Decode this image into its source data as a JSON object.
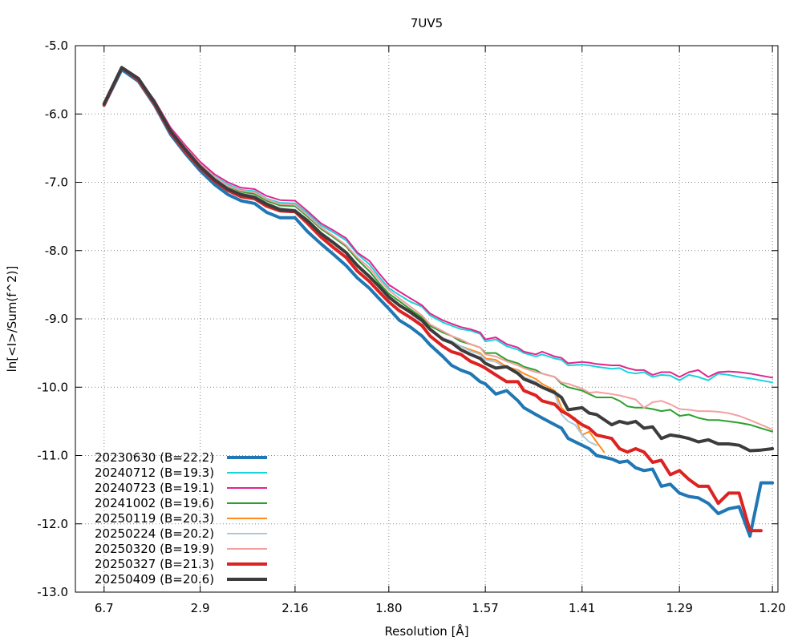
{
  "chart_data": {
    "type": "line",
    "title": "7UV5",
    "xlabel": "Resolution [Å]",
    "ylabel": "ln[<I>/Sum(f^2)]",
    "x_ticks": [
      "6.7",
      "2.9",
      "2.16",
      "1.80",
      "1.57",
      "1.41",
      "1.29",
      "1.20"
    ],
    "y_ticks": [
      "-5.0",
      "-6.0",
      "-7.0",
      "-8.0",
      "-9.0",
      "-10.0",
      "-11.0",
      "-12.0",
      "-13.0"
    ],
    "xlim": [
      -0.0066,
      0.7
    ],
    "ylim": [
      -13.0,
      -5.0
    ],
    "x_scale": "1/d^2",
    "grid": true,
    "legend_position": "bottom-left",
    "series": [
      {
        "name": "20230630 (B=22.2)",
        "color": "#1f77b4",
        "width": 4,
        "x": [
          6.7,
          5.0,
          4.2,
          3.7,
          3.35,
          3.1,
          2.9,
          2.74,
          2.61,
          2.5,
          2.4,
          2.32,
          2.24,
          2.16,
          2.1,
          2.04,
          1.99,
          1.94,
          1.9,
          1.86,
          1.83,
          1.8,
          1.77,
          1.74,
          1.71,
          1.69,
          1.66,
          1.64,
          1.62,
          1.6,
          1.58,
          1.57,
          1.55,
          1.53,
          1.51,
          1.5,
          1.48,
          1.47,
          1.45,
          1.44,
          1.43,
          1.41,
          1.4,
          1.39,
          1.37,
          1.36,
          1.35,
          1.34,
          1.33,
          1.32,
          1.31,
          1.3,
          1.29,
          1.28,
          1.27,
          1.26,
          1.25,
          1.24,
          1.23,
          1.22,
          1.21,
          1.2
        ],
        "y": [
          -5.87,
          -5.35,
          -5.52,
          -5.87,
          -6.3,
          -6.58,
          -6.83,
          -7.03,
          -7.18,
          -7.27,
          -7.31,
          -7.44,
          -7.52,
          -7.52,
          -7.72,
          -7.9,
          -8.05,
          -8.22,
          -8.4,
          -8.55,
          -8.7,
          -8.85,
          -9.02,
          -9.12,
          -9.25,
          -9.38,
          -9.55,
          -9.68,
          -9.75,
          -9.8,
          -9.92,
          -9.95,
          -10.1,
          -10.05,
          -10.2,
          -10.3,
          -10.4,
          -10.45,
          -10.55,
          -10.6,
          -10.75,
          -10.85,
          -10.9,
          -11.0,
          -11.05,
          -11.1,
          -11.08,
          -11.18,
          -11.22,
          -11.2,
          -11.45,
          -11.42,
          -11.55,
          -11.6,
          -11.62,
          -11.7,
          -11.85,
          -11.78,
          -11.75,
          -12.18,
          -11.4,
          -11.4
        ]
      },
      {
        "name": "20240712 (B=19.3)",
        "color": "#17d3dc",
        "width": 2,
        "x": [
          6.7,
          5.0,
          4.2,
          3.7,
          3.35,
          3.1,
          2.9,
          2.74,
          2.61,
          2.5,
          2.4,
          2.32,
          2.24,
          2.16,
          2.1,
          2.04,
          1.99,
          1.94,
          1.9,
          1.86,
          1.83,
          1.8,
          1.77,
          1.74,
          1.71,
          1.69,
          1.66,
          1.64,
          1.62,
          1.6,
          1.58,
          1.57,
          1.55,
          1.53,
          1.51,
          1.5,
          1.48,
          1.47,
          1.45,
          1.44,
          1.43,
          1.41,
          1.4,
          1.39,
          1.37,
          1.36,
          1.35,
          1.34,
          1.33,
          1.32,
          1.31,
          1.3,
          1.29,
          1.28,
          1.27,
          1.26,
          1.25,
          1.24,
          1.23,
          1.22,
          1.21,
          1.2
        ],
        "y": [
          -5.87,
          -5.33,
          -5.48,
          -5.8,
          -6.22,
          -6.48,
          -6.72,
          -6.91,
          -7.03,
          -7.11,
          -7.13,
          -7.24,
          -7.3,
          -7.31,
          -7.45,
          -7.63,
          -7.73,
          -7.85,
          -8.05,
          -8.2,
          -8.38,
          -8.55,
          -8.65,
          -8.75,
          -8.82,
          -8.95,
          -9.05,
          -9.1,
          -9.15,
          -9.17,
          -9.22,
          -9.33,
          -9.3,
          -9.4,
          -9.45,
          -9.5,
          -9.55,
          -9.52,
          -9.58,
          -9.6,
          -9.68,
          -9.67,
          -9.68,
          -9.7,
          -9.73,
          -9.72,
          -9.78,
          -9.8,
          -9.78,
          -9.85,
          -9.82,
          -9.83,
          -9.9,
          -9.82,
          -9.85,
          -9.9,
          -9.8,
          -9.82,
          -9.85,
          -9.87,
          -9.9,
          -9.93
        ]
      },
      {
        "name": "20240723 (B=19.1)",
        "color": "#e0268f",
        "width": 2,
        "x": [
          6.7,
          5.0,
          4.2,
          3.7,
          3.35,
          3.1,
          2.9,
          2.74,
          2.61,
          2.5,
          2.4,
          2.32,
          2.24,
          2.16,
          2.1,
          2.04,
          1.99,
          1.94,
          1.9,
          1.86,
          1.83,
          1.8,
          1.77,
          1.74,
          1.71,
          1.69,
          1.66,
          1.64,
          1.62,
          1.6,
          1.58,
          1.57,
          1.55,
          1.53,
          1.51,
          1.5,
          1.48,
          1.47,
          1.45,
          1.44,
          1.43,
          1.41,
          1.4,
          1.39,
          1.37,
          1.36,
          1.35,
          1.34,
          1.33,
          1.32,
          1.31,
          1.3,
          1.29,
          1.28,
          1.27,
          1.26,
          1.25,
          1.24,
          1.23,
          1.22,
          1.21,
          1.2
        ],
        "y": [
          -5.87,
          -5.33,
          -5.48,
          -5.8,
          -6.2,
          -6.46,
          -6.7,
          -6.88,
          -7.0,
          -7.08,
          -7.1,
          -7.2,
          -7.26,
          -7.27,
          -7.42,
          -7.6,
          -7.7,
          -7.82,
          -8.03,
          -8.15,
          -8.33,
          -8.5,
          -8.6,
          -8.7,
          -8.8,
          -8.92,
          -9.02,
          -9.07,
          -9.12,
          -9.15,
          -9.2,
          -9.3,
          -9.27,
          -9.37,
          -9.42,
          -9.48,
          -9.52,
          -9.48,
          -9.55,
          -9.57,
          -9.65,
          -9.63,
          -9.64,
          -9.66,
          -9.68,
          -9.68,
          -9.72,
          -9.75,
          -9.75,
          -9.82,
          -9.78,
          -9.78,
          -9.85,
          -9.78,
          -9.75,
          -9.85,
          -9.78,
          -9.77,
          -9.78,
          -9.8,
          -9.83,
          -9.86
        ]
      },
      {
        "name": "20241002 (B=19.6)",
        "color": "#2ca02c",
        "width": 2,
        "x": [
          6.7,
          5.0,
          4.2,
          3.7,
          3.35,
          3.1,
          2.9,
          2.74,
          2.61,
          2.5,
          2.4,
          2.32,
          2.24,
          2.16,
          2.1,
          2.04,
          1.99,
          1.94,
          1.9,
          1.86,
          1.83,
          1.8,
          1.77,
          1.74,
          1.71,
          1.69,
          1.66,
          1.64,
          1.62,
          1.6,
          1.58,
          1.57,
          1.55,
          1.53,
          1.51,
          1.5,
          1.48,
          1.47,
          1.45,
          1.44,
          1.43,
          1.41,
          1.4,
          1.39,
          1.37,
          1.36,
          1.35,
          1.34,
          1.33,
          1.32,
          1.31,
          1.3,
          1.29,
          1.28,
          1.27,
          1.26,
          1.25,
          1.24,
          1.23,
          1.22,
          1.21,
          1.2
        ],
        "y": [
          -5.87,
          -5.33,
          -5.48,
          -5.82,
          -6.24,
          -6.5,
          -6.75,
          -6.94,
          -7.06,
          -7.14,
          -7.17,
          -7.27,
          -7.34,
          -7.35,
          -7.5,
          -7.68,
          -7.8,
          -7.94,
          -8.13,
          -8.3,
          -8.47,
          -8.63,
          -8.74,
          -8.86,
          -8.98,
          -9.1,
          -9.2,
          -9.25,
          -9.33,
          -9.37,
          -9.42,
          -9.5,
          -9.5,
          -9.6,
          -9.65,
          -9.7,
          -9.75,
          -9.8,
          -9.85,
          -9.95,
          -10.0,
          -10.05,
          -10.1,
          -10.15,
          -10.15,
          -10.2,
          -10.28,
          -10.3,
          -10.3,
          -10.32,
          -10.35,
          -10.33,
          -10.42,
          -10.4,
          -10.45,
          -10.48,
          -10.48,
          -10.5,
          -10.52,
          -10.55,
          -10.6,
          -10.65
        ]
      },
      {
        "name": "20250119 (B=20.3)",
        "color": "#ff8c1a",
        "width": 2,
        "x": [
          6.7,
          5.0,
          4.2,
          3.7,
          3.35,
          3.1,
          2.9,
          2.74,
          2.61,
          2.5,
          2.4,
          2.32,
          2.24,
          2.16,
          2.1,
          2.04,
          1.99,
          1.94,
          1.9,
          1.86,
          1.83,
          1.8,
          1.77,
          1.74,
          1.71,
          1.69,
          1.66,
          1.64,
          1.62,
          1.6,
          1.58,
          1.57,
          1.55,
          1.53,
          1.51,
          1.5,
          1.48,
          1.47,
          1.45,
          1.44,
          1.43,
          1.42,
          1.41,
          1.4,
          1.39,
          1.38
        ],
        "y": [
          -5.87,
          -5.33,
          -5.48,
          -5.82,
          -6.24,
          -6.5,
          -6.75,
          -6.94,
          -7.08,
          -7.16,
          -7.2,
          -7.3,
          -7.38,
          -7.4,
          -7.56,
          -7.75,
          -7.88,
          -8.02,
          -8.2,
          -8.37,
          -8.53,
          -8.68,
          -8.8,
          -8.92,
          -9.05,
          -9.17,
          -9.28,
          -9.33,
          -9.4,
          -9.45,
          -9.5,
          -9.58,
          -9.6,
          -9.7,
          -9.75,
          -9.8,
          -9.88,
          -9.95,
          -10.05,
          -10.3,
          -10.4,
          -10.45,
          -10.7,
          -10.65,
          -10.8,
          -10.95
        ]
      },
      {
        "name": "20250224 (B=20.2)",
        "color": "#aac8df",
        "width": 2,
        "x": [
          6.7,
          5.0,
          4.2,
          3.7,
          3.35,
          3.1,
          2.9,
          2.74,
          2.61,
          2.5,
          2.4,
          2.32,
          2.24,
          2.16,
          2.1,
          2.04,
          1.99,
          1.94,
          1.9,
          1.86,
          1.83,
          1.8,
          1.77,
          1.74,
          1.71,
          1.69,
          1.66,
          1.64,
          1.62,
          1.6,
          1.58,
          1.57,
          1.55,
          1.53,
          1.51,
          1.5,
          1.48,
          1.47,
          1.45,
          1.44,
          1.43,
          1.42,
          1.41,
          1.4,
          1.39
        ],
        "y": [
          -5.87,
          -5.33,
          -5.48,
          -5.82,
          -6.24,
          -6.5,
          -6.75,
          -6.94,
          -7.08,
          -7.16,
          -7.2,
          -7.3,
          -7.38,
          -7.4,
          -7.56,
          -7.75,
          -7.88,
          -8.02,
          -8.2,
          -8.37,
          -8.53,
          -8.68,
          -8.8,
          -8.92,
          -9.05,
          -9.17,
          -9.28,
          -9.33,
          -9.4,
          -9.47,
          -9.52,
          -9.6,
          -9.63,
          -9.72,
          -9.77,
          -9.85,
          -9.92,
          -10.0,
          -10.1,
          -10.4,
          -10.5,
          -10.55,
          -10.7,
          -10.8,
          -10.85
        ]
      },
      {
        "name": "20250320 (B=19.9)",
        "color": "#f4a0a0",
        "width": 2,
        "x": [
          6.7,
          5.0,
          4.2,
          3.7,
          3.35,
          3.1,
          2.9,
          2.74,
          2.61,
          2.5,
          2.4,
          2.32,
          2.24,
          2.16,
          2.1,
          2.04,
          1.99,
          1.94,
          1.9,
          1.86,
          1.83,
          1.8,
          1.77,
          1.74,
          1.71,
          1.69,
          1.66,
          1.64,
          1.62,
          1.6,
          1.58,
          1.57,
          1.55,
          1.53,
          1.51,
          1.5,
          1.48,
          1.47,
          1.45,
          1.44,
          1.43,
          1.41,
          1.4,
          1.39,
          1.37,
          1.36,
          1.35,
          1.34,
          1.33,
          1.32,
          1.31,
          1.3,
          1.29,
          1.28,
          1.27,
          1.26,
          1.25,
          1.24,
          1.23,
          1.22,
          1.21,
          1.2
        ],
        "y": [
          -5.87,
          -5.33,
          -5.48,
          -5.82,
          -6.23,
          -6.49,
          -6.73,
          -6.92,
          -7.05,
          -7.12,
          -7.15,
          -7.25,
          -7.32,
          -7.33,
          -7.48,
          -7.66,
          -7.78,
          -7.92,
          -8.1,
          -8.25,
          -8.42,
          -8.58,
          -8.7,
          -8.82,
          -8.95,
          -9.08,
          -9.18,
          -9.25,
          -9.3,
          -9.37,
          -9.42,
          -9.52,
          -9.55,
          -9.62,
          -9.68,
          -9.72,
          -9.78,
          -9.8,
          -9.85,
          -9.93,
          -9.95,
          -10.02,
          -10.08,
          -10.07,
          -10.1,
          -10.12,
          -10.15,
          -10.18,
          -10.3,
          -10.22,
          -10.2,
          -10.25,
          -10.32,
          -10.33,
          -10.35,
          -10.35,
          -10.36,
          -10.38,
          -10.42,
          -10.48,
          -10.55,
          -10.62
        ]
      },
      {
        "name": "20250327 (B=21.3)",
        "color": "#dd2222",
        "width": 4,
        "x": [
          6.7,
          5.0,
          4.2,
          3.7,
          3.35,
          3.1,
          2.9,
          2.74,
          2.61,
          2.5,
          2.4,
          2.32,
          2.24,
          2.16,
          2.1,
          2.04,
          1.99,
          1.94,
          1.9,
          1.86,
          1.83,
          1.8,
          1.77,
          1.74,
          1.71,
          1.69,
          1.66,
          1.64,
          1.62,
          1.6,
          1.58,
          1.57,
          1.55,
          1.53,
          1.51,
          1.5,
          1.48,
          1.47,
          1.45,
          1.44,
          1.43,
          1.41,
          1.4,
          1.39,
          1.37,
          1.36,
          1.35,
          1.34,
          1.33,
          1.32,
          1.31,
          1.3,
          1.29,
          1.28,
          1.27,
          1.26,
          1.25,
          1.24,
          1.23,
          1.22,
          1.21
        ],
        "y": [
          -5.87,
          -5.32,
          -5.5,
          -5.85,
          -6.27,
          -6.55,
          -6.79,
          -6.98,
          -7.12,
          -7.21,
          -7.24,
          -7.35,
          -7.42,
          -7.43,
          -7.6,
          -7.8,
          -7.95,
          -8.1,
          -8.3,
          -8.45,
          -8.6,
          -8.75,
          -8.88,
          -8.98,
          -9.1,
          -9.25,
          -9.4,
          -9.48,
          -9.52,
          -9.62,
          -9.68,
          -9.72,
          -9.82,
          -9.92,
          -9.92,
          -10.05,
          -10.12,
          -10.2,
          -10.25,
          -10.35,
          -10.4,
          -10.55,
          -10.6,
          -10.7,
          -10.75,
          -10.9,
          -10.95,
          -10.9,
          -10.95,
          -11.1,
          -11.07,
          -11.28,
          -11.22,
          -11.35,
          -11.45,
          -11.45,
          -11.7,
          -11.55,
          -11.55,
          -12.1,
          -12.1
        ]
      },
      {
        "name": "20250409 (B=20.6)",
        "color": "#3c3c3c",
        "width": 4,
        "x": [
          6.7,
          5.0,
          4.2,
          3.7,
          3.35,
          3.1,
          2.9,
          2.74,
          2.61,
          2.5,
          2.4,
          2.32,
          2.24,
          2.16,
          2.1,
          2.04,
          1.99,
          1.94,
          1.9,
          1.86,
          1.83,
          1.8,
          1.77,
          1.74,
          1.71,
          1.69,
          1.66,
          1.64,
          1.62,
          1.6,
          1.58,
          1.57,
          1.55,
          1.53,
          1.51,
          1.5,
          1.48,
          1.47,
          1.45,
          1.44,
          1.43,
          1.41,
          1.4,
          1.39,
          1.37,
          1.36,
          1.35,
          1.34,
          1.33,
          1.32,
          1.31,
          1.3,
          1.29,
          1.28,
          1.27,
          1.26,
          1.25,
          1.24,
          1.23,
          1.22,
          1.21,
          1.2
        ],
        "y": [
          -5.85,
          -5.32,
          -5.48,
          -5.83,
          -6.25,
          -6.52,
          -6.77,
          -6.96,
          -7.1,
          -7.18,
          -7.22,
          -7.32,
          -7.4,
          -7.42,
          -7.56,
          -7.75,
          -7.88,
          -8.03,
          -8.22,
          -8.38,
          -8.52,
          -8.68,
          -8.8,
          -8.9,
          -9.02,
          -9.15,
          -9.3,
          -9.35,
          -9.45,
          -9.52,
          -9.58,
          -9.65,
          -9.72,
          -9.7,
          -9.8,
          -9.88,
          -9.95,
          -10.0,
          -10.08,
          -10.15,
          -10.33,
          -10.3,
          -10.38,
          -10.4,
          -10.55,
          -10.5,
          -10.53,
          -10.5,
          -10.6,
          -10.58,
          -10.75,
          -10.7,
          -10.72,
          -10.75,
          -10.8,
          -10.77,
          -10.83,
          -10.83,
          -10.85,
          -10.93,
          -10.92,
          -10.9
        ]
      }
    ]
  }
}
